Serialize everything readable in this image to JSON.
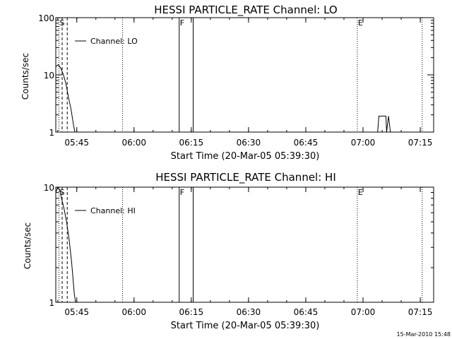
{
  "footer_timestamp": "15-Mar-2010 15:48",
  "chart_data": [
    {
      "type": "line",
      "title": "HESSI PARTICLE_RATE Channel: LO",
      "xlabel": "Start Time (20-Mar-05 05:39:30)",
      "ylabel": "Counts/sec",
      "yscale": "log",
      "ylim": [
        1,
        100
      ],
      "xlim": [
        "05:39:30",
        "07:18:30"
      ],
      "x_ticks": [
        "05:45",
        "06:00",
        "06:15",
        "06:30",
        "06:45",
        "07:00",
        "07:15"
      ],
      "y_ticks": [
        "1",
        "10",
        "100"
      ],
      "legend": {
        "label": "Channel: LO",
        "position": "top-left"
      },
      "markers": [
        {
          "label": "S",
          "time": "05:40:20",
          "style": "dotted"
        },
        {
          "label": "",
          "time": "05:41:10",
          "style": "dashed"
        },
        {
          "label": "",
          "time": "05:42:30",
          "style": "dashed"
        },
        {
          "label": "",
          "time": "05:57:00",
          "style": "dotted"
        },
        {
          "label": "F",
          "time": "06:11:50",
          "style": "solid"
        },
        {
          "label": "",
          "time": "06:15:30",
          "style": "solid"
        },
        {
          "label": "E",
          "time": "06:58:30",
          "style": "dotted"
        },
        {
          "label": "",
          "time": "07:15:30",
          "style": "dotted"
        }
      ],
      "series": [
        {
          "name": "Channel: LO",
          "segments": [
            {
              "time": [
                "05:39:30",
                "05:40:10",
                "05:40:50",
                "05:41:30",
                "05:42:10",
                "05:42:50",
                "05:43:30",
                "05:44:10",
                "05:44:30"
              ],
              "value": [
                14,
                15,
                13,
                10,
                7,
                4,
                2.5,
                1.3,
                1
              ]
            },
            {
              "time": [
                "07:03:50",
                "07:04:10",
                "07:06:00",
                "07:06:10",
                "07:06:40",
                "07:07:10"
              ],
              "value": [
                1,
                1.9,
                1.9,
                1,
                1.9,
                1
              ]
            }
          ]
        }
      ]
    },
    {
      "type": "line",
      "title": "HESSI PARTICLE_RATE Channel: HI",
      "xlabel": "Start Time (20-Mar-05 05:39:30)",
      "ylabel": "Counts/sec",
      "yscale": "log",
      "ylim": [
        1,
        10
      ],
      "xlim": [
        "05:39:30",
        "07:18:30"
      ],
      "x_ticks": [
        "05:45",
        "06:00",
        "06:15",
        "06:30",
        "06:45",
        "07:00",
        "07:15"
      ],
      "y_ticks": [
        "1",
        "10"
      ],
      "legend": {
        "label": "Channel: HI",
        "position": "top-left"
      },
      "markers": [
        {
          "label": "S",
          "time": "05:40:20",
          "style": "dotted"
        },
        {
          "label": "",
          "time": "05:41:10",
          "style": "dashed"
        },
        {
          "label": "",
          "time": "05:42:30",
          "style": "dashed"
        },
        {
          "label": "",
          "time": "05:57:00",
          "style": "dotted"
        },
        {
          "label": "F",
          "time": "06:11:50",
          "style": "solid"
        },
        {
          "label": "",
          "time": "06:15:30",
          "style": "solid"
        },
        {
          "label": "E",
          "time": "06:58:30",
          "style": "dotted"
        },
        {
          "label": "",
          "time": "07:15:30",
          "style": "dotted"
        }
      ],
      "series": [
        {
          "name": "Channel: HI",
          "segments": [
            {
              "time": [
                "05:39:30",
                "05:40:00",
                "05:40:30",
                "05:41:00",
                "05:41:40",
                "05:42:20",
                "05:43:00",
                "05:43:40",
                "05:44:20",
                "05:44:40"
              ],
              "value": [
                9,
                10,
                9.5,
                8,
                6.5,
                5,
                3.5,
                2.2,
                1.2,
                1
              ]
            }
          ]
        }
      ]
    }
  ]
}
